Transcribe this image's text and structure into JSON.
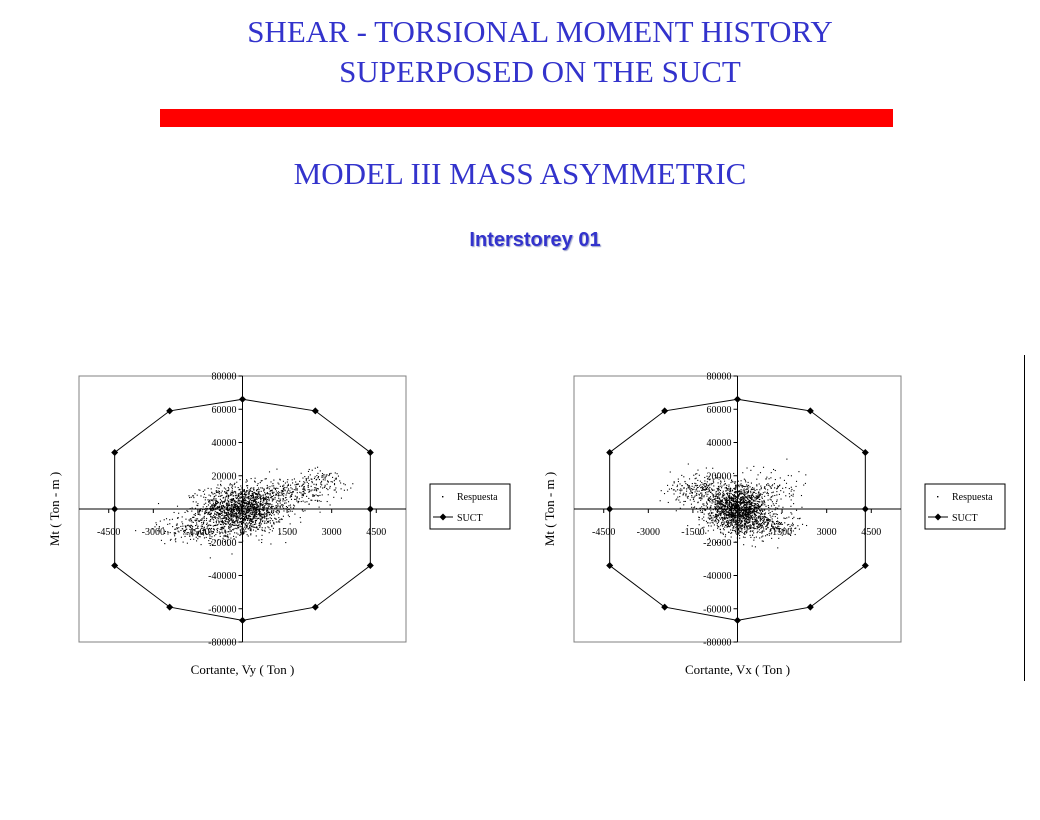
{
  "header": {
    "title_line1": "SHEAR - TORSIONAL MOMENT HISTORY",
    "title_line2": "SUPERPOSED ON THE SUCT",
    "subtitle": "MODEL III MASS ASYMMETRIC",
    "storey_label": "Interstorey 01",
    "accent_color": "#3333cc",
    "bar_color": "#ff0000"
  },
  "chart_data": [
    {
      "type": "scatter",
      "title": "",
      "xlabel": "Cortante, Vy ( Ton )",
      "ylabel": "Mt ( Ton - m )",
      "xlim": [
        -5500,
        5500
      ],
      "ylim": [
        -80000,
        80000
      ],
      "x_ticks": [
        -4500,
        -3000,
        -1500,
        0,
        1500,
        3000,
        4500
      ],
      "x_tick_labels": [
        "-4500",
        "-3000",
        "-1500",
        "0",
        "1500",
        "3000",
        "4500"
      ],
      "y_ticks": [
        80000,
        60000,
        40000,
        20000,
        0,
        -20000,
        -40000,
        -60000,
        -80000
      ],
      "y_tick_labels": [
        "80000",
        "60000",
        "40000",
        "20000",
        "0",
        "-20000",
        "-40000",
        "-60000",
        "-80000"
      ],
      "grid": false,
      "legend": "right",
      "series": [
        {
          "name": "Respuesta",
          "style": "dots",
          "cloud": [
            {
              "x": 0,
              "y": 0,
              "sx": 700,
              "sy": 7000,
              "n": 1600
            },
            {
              "x": -1500,
              "y": -12000,
              "sx": 700,
              "sy": 4000,
              "n": 250
            },
            {
              "x": 1700,
              "y": 10000,
              "sx": 700,
              "sy": 4500,
              "n": 250
            },
            {
              "x": 2700,
              "y": 18000,
              "sx": 400,
              "sy": 3000,
              "n": 80
            }
          ]
        },
        {
          "name": "SUCT",
          "style": "line-diamond",
          "x": [
            0,
            2450,
            4300,
            4300,
            4300,
            2450,
            0,
            -2450,
            -4300,
            -4300,
            -4300,
            -2450,
            0
          ],
          "y": [
            66000,
            59000,
            34000,
            0,
            -34000,
            -59000,
            -67000,
            -59000,
            -34000,
            0,
            34000,
            59000,
            66000
          ]
        }
      ]
    },
    {
      "type": "scatter",
      "title": "",
      "xlabel": "Cortante, Vx ( Ton )",
      "ylabel": "Mt ( Ton - m )",
      "xlim": [
        -5500,
        5500
      ],
      "ylim": [
        -80000,
        80000
      ],
      "x_ticks": [
        -4500,
        -3000,
        -1500,
        0,
        1500,
        3000,
        4500
      ],
      "x_tick_labels": [
        "-4500",
        "-3000",
        "-1500",
        "0",
        "1500",
        "3000",
        "4500"
      ],
      "y_ticks": [
        80000,
        60000,
        40000,
        20000,
        0,
        -20000,
        -40000,
        -60000,
        -80000
      ],
      "y_tick_labels": [
        "80000",
        "60000",
        "40000",
        "20000",
        "0",
        "-20000",
        "-40000",
        "-60000",
        "-80000"
      ],
      "grid": false,
      "legend": "right",
      "series": [
        {
          "name": "Respuesta",
          "style": "dots",
          "cloud": [
            {
              "x": 0,
              "y": 0,
              "sx": 500,
              "sy": 7000,
              "n": 1600
            },
            {
              "x": -1300,
              "y": 12000,
              "sx": 500,
              "sy": 5000,
              "n": 250
            },
            {
              "x": 1100,
              "y": -10000,
              "sx": 500,
              "sy": 4000,
              "n": 200
            },
            {
              "x": 1200,
              "y": 12000,
              "sx": 500,
              "sy": 6000,
              "n": 100
            }
          ]
        },
        {
          "name": "SUCT",
          "style": "line-diamond",
          "x": [
            0,
            2450,
            4300,
            4300,
            4300,
            2450,
            0,
            -2450,
            -4300,
            -4300,
            -4300,
            -2450,
            0
          ],
          "y": [
            66000,
            59000,
            34000,
            0,
            -34000,
            -59000,
            -67000,
            -59000,
            -34000,
            0,
            34000,
            59000,
            66000
          ]
        }
      ]
    }
  ]
}
